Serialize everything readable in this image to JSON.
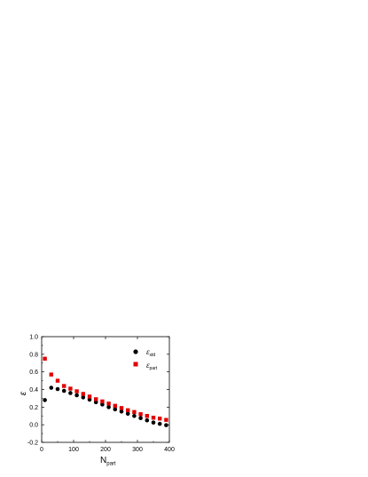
{
  "chart_data": {
    "type": "scatter",
    "xlabel": "N",
    "xlabel_sub": "part",
    "ylabel": "ε",
    "xlim": [
      0,
      400
    ],
    "ylim": [
      -0.2,
      1.0
    ],
    "xticks": [
      0,
      100,
      200,
      300,
      400
    ],
    "yticks": [
      -0.2,
      0.0,
      0.2,
      0.4,
      0.6,
      0.8,
      1.0
    ],
    "legend_position": "top-right",
    "grid": false,
    "series": [
      {
        "name": "ε",
        "name_sub": "std",
        "marker": "circle",
        "color": "#000000",
        "points": [
          [
            10,
            0.28
          ],
          [
            30,
            0.42
          ],
          [
            50,
            0.405
          ],
          [
            70,
            0.385
          ],
          [
            90,
            0.36
          ],
          [
            110,
            0.335
          ],
          [
            130,
            0.31
          ],
          [
            150,
            0.285
          ],
          [
            170,
            0.255
          ],
          [
            190,
            0.23
          ],
          [
            210,
            0.2
          ],
          [
            230,
            0.175
          ],
          [
            250,
            0.15
          ],
          [
            270,
            0.125
          ],
          [
            290,
            0.1
          ],
          [
            310,
            0.075
          ],
          [
            330,
            0.05
          ],
          [
            350,
            0.025
          ],
          [
            370,
            0.01
          ],
          [
            390,
            -0.005
          ]
        ]
      },
      {
        "name": "ε",
        "name_sub": "part",
        "marker": "square",
        "color": "#e00000",
        "points": [
          [
            10,
            0.75
          ],
          [
            30,
            0.57
          ],
          [
            50,
            0.5
          ],
          [
            70,
            0.44
          ],
          [
            90,
            0.41
          ],
          [
            110,
            0.38
          ],
          [
            130,
            0.35
          ],
          [
            150,
            0.32
          ],
          [
            170,
            0.29
          ],
          [
            190,
            0.265
          ],
          [
            210,
            0.24
          ],
          [
            230,
            0.215
          ],
          [
            250,
            0.19
          ],
          [
            270,
            0.165
          ],
          [
            290,
            0.145
          ],
          [
            310,
            0.12
          ],
          [
            330,
            0.1
          ],
          [
            350,
            0.08
          ],
          [
            370,
            0.07
          ],
          [
            390,
            0.055
          ]
        ]
      }
    ]
  }
}
